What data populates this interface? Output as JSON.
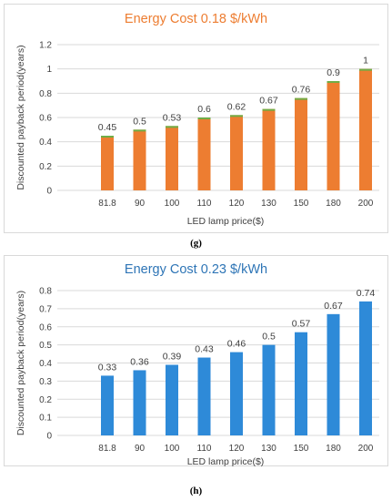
{
  "chart_data": [
    {
      "id": "g",
      "type": "bar",
      "title": "Energy Cost 0.18 $/kWh",
      "xlabel": "LED lamp price($)",
      "ylabel": "Discounted payback period(years)",
      "categories": [
        "81.8",
        "90",
        "100",
        "110",
        "120",
        "130",
        "150",
        "180",
        "200"
      ],
      "values": [
        0.45,
        0.5,
        0.53,
        0.6,
        0.62,
        0.67,
        0.76,
        0.9,
        1
      ],
      "data_labels": [
        "0.45",
        "0.5",
        "0.53",
        "0.6",
        "0.62",
        "0.67",
        "0.76",
        "0.9",
        "1"
      ],
      "ylim": [
        0,
        1.2
      ],
      "yticks": [
        "0",
        "0.2",
        "0.4",
        "0.6",
        "0.8",
        "1",
        "1.2"
      ],
      "grid": true,
      "bar_color": "#ed7d31",
      "bar_top_color": "#70ad47",
      "caption": "(g)"
    },
    {
      "id": "h",
      "type": "bar",
      "title": "Energy Cost 0.23 $/kWh",
      "xlabel": "LED lamp price($)",
      "ylabel": "Discounted payback period(years)",
      "categories": [
        "81.8",
        "90",
        "100",
        "110",
        "120",
        "130",
        "150",
        "180",
        "200"
      ],
      "values": [
        0.33,
        0.36,
        0.39,
        0.43,
        0.46,
        0.5,
        0.57,
        0.67,
        0.74
      ],
      "data_labels": [
        "0.33",
        "0.36",
        "0.39",
        "0.43",
        "0.46",
        "0.5",
        "0.57",
        "0.67",
        "0.74"
      ],
      "ylim": [
        0,
        0.8
      ],
      "yticks": [
        "0",
        "0.1",
        "0.2",
        "0.3",
        "0.4",
        "0.5",
        "0.6",
        "0.7",
        "0.8"
      ],
      "grid": true,
      "bar_color": "#2e8ad8",
      "caption": "(h)"
    }
  ]
}
